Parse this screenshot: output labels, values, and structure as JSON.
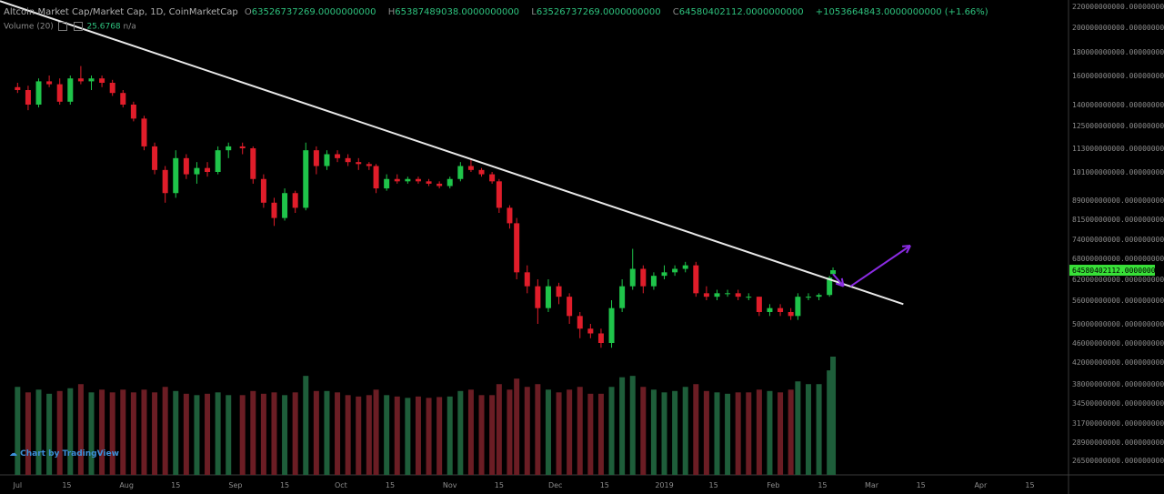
{
  "header": {
    "title": "Altcoin Market Cap/Market Cap, 1D, CoinMarketCap",
    "o_label": "O",
    "o_value": "63526737269.0000000000",
    "h_label": "H",
    "h_value": "65387489038.0000000000",
    "l_label": "L",
    "l_value": "63526737269.0000000000",
    "c_label": "C",
    "c_value": "64580402112.0000000000",
    "change": "+1053664843.0000000000 (+1.66%)"
  },
  "volume_label": "Volume (20)",
  "volume_value": "25.6768",
  "volume_na": "n/a",
  "logo": "Chart by TradingView",
  "colors": {
    "up": "#1fc44a",
    "down": "#e01d2a",
    "vol_up": "#1e5e3a",
    "vol_down": "#6b1d24",
    "trendline": "#e8e8e8",
    "arrow": "#8a2be2",
    "price_tag": "#38e038"
  },
  "chart_data": {
    "type": "candlestick",
    "title": "Altcoin Market Cap/Market Cap, 1D, CoinMarketCap",
    "price_tag": "64580402112.0000000000",
    "x_ticks": [
      "Jul",
      "15",
      "Aug",
      "15",
      "Sep",
      "15",
      "Oct",
      "15",
      "Nov",
      "15",
      "Dec",
      "15",
      "2019",
      "15",
      "Feb",
      "15",
      "Mar",
      "15",
      "Apr",
      "15"
    ],
    "y_ticks": [
      {
        "value": 220000000000,
        "label": "220000000000.0000000000"
      },
      {
        "value": 200000000000,
        "label": "200000000000.0000000000"
      },
      {
        "value": 180000000000,
        "label": "180000000000.0000000000"
      },
      {
        "value": 160000000000,
        "label": "160000000000.0000000000"
      },
      {
        "value": 140000000000,
        "label": "140000000000.0000000000"
      },
      {
        "value": 125000000000,
        "label": "125000000000.0000000000"
      },
      {
        "value": 113000000000,
        "label": "113000000000.0000000000"
      },
      {
        "value": 101000000000,
        "label": "101000000000.0000000000"
      },
      {
        "value": 89000000000,
        "label": "89000000000.0000000000"
      },
      {
        "value": 81500000000,
        "label": "81500000000.0000000000"
      },
      {
        "value": 74000000000,
        "label": "74000000000.0000000000"
      },
      {
        "value": 68000000000,
        "label": "68000000000.0000000000"
      },
      {
        "value": 62000000000,
        "label": "62000000000.0000000000"
      },
      {
        "value": 56000000000,
        "label": "56000000000.0000000000"
      },
      {
        "value": 50000000000,
        "label": "50000000000.0000000000"
      },
      {
        "value": 46000000000,
        "label": "46000000000.0000000000"
      },
      {
        "value": 42000000000,
        "label": "42000000000.0000000000"
      },
      {
        "value": 38000000000,
        "label": "38000000000.0000000000"
      },
      {
        "value": 34500000000,
        "label": "34500000000.0000000000"
      },
      {
        "value": 31700000000,
        "label": "31700000000.0000000000"
      },
      {
        "value": 28900000000,
        "label": "28900000000.0000000000"
      },
      {
        "value": 26500000000,
        "label": "26500000000.0000000000"
      }
    ],
    "candles": [
      {
        "date": "2018-07-01",
        "o": 152,
        "h": 155,
        "l": 148,
        "c": 150
      },
      {
        "date": "2018-07-04",
        "o": 150,
        "h": 153,
        "l": 136,
        "c": 140
      },
      {
        "date": "2018-07-07",
        "o": 140,
        "h": 158,
        "l": 138,
        "c": 156
      },
      {
        "date": "2018-07-10",
        "o": 156,
        "h": 160,
        "l": 152,
        "c": 154
      },
      {
        "date": "2018-07-13",
        "o": 154,
        "h": 158,
        "l": 140,
        "c": 142
      },
      {
        "date": "2018-07-16",
        "o": 142,
        "h": 160,
        "l": 140,
        "c": 158
      },
      {
        "date": "2018-07-19",
        "o": 158,
        "h": 168,
        "l": 154,
        "c": 156
      },
      {
        "date": "2018-07-22",
        "o": 156,
        "h": 160,
        "l": 150,
        "c": 158
      },
      {
        "date": "2018-07-25",
        "o": 158,
        "h": 160,
        "l": 152,
        "c": 155
      },
      {
        "date": "2018-07-28",
        "o": 155,
        "h": 157,
        "l": 146,
        "c": 148
      },
      {
        "date": "2018-07-31",
        "o": 148,
        "h": 150,
        "l": 138,
        "c": 140
      },
      {
        "date": "2018-08-03",
        "o": 140,
        "h": 142,
        "l": 128,
        "c": 130
      },
      {
        "date": "2018-08-06",
        "o": 130,
        "h": 132,
        "l": 112,
        "c": 114
      },
      {
        "date": "2018-08-09",
        "o": 114,
        "h": 116,
        "l": 100,
        "c": 102
      },
      {
        "date": "2018-08-12",
        "o": 102,
        "h": 104,
        "l": 88,
        "c": 92
      },
      {
        "date": "2018-08-15",
        "o": 92,
        "h": 112,
        "l": 90,
        "c": 108
      },
      {
        "date": "2018-08-18",
        "o": 108,
        "h": 110,
        "l": 98,
        "c": 100
      },
      {
        "date": "2018-08-21",
        "o": 100,
        "h": 106,
        "l": 96,
        "c": 103
      },
      {
        "date": "2018-08-24",
        "o": 103,
        "h": 106,
        "l": 99,
        "c": 101
      },
      {
        "date": "2018-08-27",
        "o": 101,
        "h": 114,
        "l": 100,
        "c": 112
      },
      {
        "date": "2018-08-30",
        "o": 112,
        "h": 116,
        "l": 108,
        "c": 114
      },
      {
        "date": "2018-09-03",
        "o": 114,
        "h": 116,
        "l": 110,
        "c": 113
      },
      {
        "date": "2018-09-06",
        "o": 113,
        "h": 114,
        "l": 96,
        "c": 98
      },
      {
        "date": "2018-09-09",
        "o": 98,
        "h": 100,
        "l": 86,
        "c": 88
      },
      {
        "date": "2018-09-12",
        "o": 88,
        "h": 90,
        "l": 79,
        "c": 82
      },
      {
        "date": "2018-09-15",
        "o": 82,
        "h": 94,
        "l": 81,
        "c": 92
      },
      {
        "date": "2018-09-18",
        "o": 92,
        "h": 93,
        "l": 84,
        "c": 86
      },
      {
        "date": "2018-09-21",
        "o": 86,
        "h": 116,
        "l": 85,
        "c": 112
      },
      {
        "date": "2018-09-24",
        "o": 112,
        "h": 114,
        "l": 100,
        "c": 104
      },
      {
        "date": "2018-09-27",
        "o": 104,
        "h": 112,
        "l": 102,
        "c": 110
      },
      {
        "date": "2018-09-30",
        "o": 110,
        "h": 112,
        "l": 106,
        "c": 108
      },
      {
        "date": "2018-10-03",
        "o": 108,
        "h": 110,
        "l": 104,
        "c": 106
      },
      {
        "date": "2018-10-06",
        "o": 106,
        "h": 108,
        "l": 102,
        "c": 105
      },
      {
        "date": "2018-10-09",
        "o": 105,
        "h": 106,
        "l": 102,
        "c": 104
      },
      {
        "date": "2018-10-11",
        "o": 104,
        "h": 105,
        "l": 92,
        "c": 94
      },
      {
        "date": "2018-10-14",
        "o": 94,
        "h": 100,
        "l": 93,
        "c": 98
      },
      {
        "date": "2018-10-17",
        "o": 98,
        "h": 100,
        "l": 96,
        "c": 97
      },
      {
        "date": "2018-10-20",
        "o": 97,
        "h": 99,
        "l": 96,
        "c": 98
      },
      {
        "date": "2018-10-23",
        "o": 98,
        "h": 99,
        "l": 96,
        "c": 97
      },
      {
        "date": "2018-10-26",
        "o": 97,
        "h": 98,
        "l": 95,
        "c": 96
      },
      {
        "date": "2018-10-29",
        "o": 96,
        "h": 97,
        "l": 94,
        "c": 95
      },
      {
        "date": "2018-11-01",
        "o": 95,
        "h": 99,
        "l": 94,
        "c": 98
      },
      {
        "date": "2018-11-04",
        "o": 98,
        "h": 106,
        "l": 97,
        "c": 104
      },
      {
        "date": "2018-11-07",
        "o": 104,
        "h": 108,
        "l": 101,
        "c": 102
      },
      {
        "date": "2018-11-10",
        "o": 102,
        "h": 103,
        "l": 99,
        "c": 100
      },
      {
        "date": "2018-11-13",
        "o": 100,
        "h": 101,
        "l": 96,
        "c": 97
      },
      {
        "date": "2018-11-15",
        "o": 97,
        "h": 98,
        "l": 84,
        "c": 86
      },
      {
        "date": "2018-11-18",
        "o": 86,
        "h": 87,
        "l": 78,
        "c": 80
      },
      {
        "date": "2018-11-20",
        "o": 80,
        "h": 82,
        "l": 62,
        "c": 64
      },
      {
        "date": "2018-11-23",
        "o": 64,
        "h": 66,
        "l": 58,
        "c": 60
      },
      {
        "date": "2018-11-26",
        "o": 60,
        "h": 62,
        "l": 50,
        "c": 54
      },
      {
        "date": "2018-11-29",
        "o": 54,
        "h": 62,
        "l": 53,
        "c": 60
      },
      {
        "date": "2018-12-02",
        "o": 60,
        "h": 61,
        "l": 55,
        "c": 57
      },
      {
        "date": "2018-12-05",
        "o": 57,
        "h": 58,
        "l": 50,
        "c": 52
      },
      {
        "date": "2018-12-08",
        "o": 52,
        "h": 53,
        "l": 47,
        "c": 49
      },
      {
        "date": "2018-12-11",
        "o": 49,
        "h": 50,
        "l": 47,
        "c": 48
      },
      {
        "date": "2018-12-14",
        "o": 48,
        "h": 49,
        "l": 45,
        "c": 46
      },
      {
        "date": "2018-12-17",
        "o": 46,
        "h": 56,
        "l": 45,
        "c": 54
      },
      {
        "date": "2018-12-20",
        "o": 54,
        "h": 62,
        "l": 53,
        "c": 60
      },
      {
        "date": "2018-12-23",
        "o": 60,
        "h": 71,
        "l": 59,
        "c": 65
      },
      {
        "date": "2018-12-26",
        "o": 65,
        "h": 66,
        "l": 58,
        "c": 60
      },
      {
        "date": "2018-12-29",
        "o": 60,
        "h": 64,
        "l": 59,
        "c": 63
      },
      {
        "date": "2019-01-01",
        "o": 63,
        "h": 66,
        "l": 62,
        "c": 64
      },
      {
        "date": "2019-01-04",
        "o": 64,
        "h": 66,
        "l": 63,
        "c": 65
      },
      {
        "date": "2019-01-07",
        "o": 65,
        "h": 67,
        "l": 64,
        "c": 66
      },
      {
        "date": "2019-01-10",
        "o": 66,
        "h": 67,
        "l": 57,
        "c": 58
      },
      {
        "date": "2019-01-13",
        "o": 58,
        "h": 60,
        "l": 56,
        "c": 57
      },
      {
        "date": "2019-01-16",
        "o": 57,
        "h": 59,
        "l": 56,
        "c": 58
      },
      {
        "date": "2019-01-19",
        "o": 58,
        "h": 59,
        "l": 57,
        "c": 58
      },
      {
        "date": "2019-01-22",
        "o": 58,
        "h": 59,
        "l": 56,
        "c": 57
      },
      {
        "date": "2019-01-25",
        "o": 57,
        "h": 58,
        "l": 56,
        "c": 57
      },
      {
        "date": "2019-01-28",
        "o": 57,
        "h": 57,
        "l": 52,
        "c": 53
      },
      {
        "date": "2019-01-31",
        "o": 53,
        "h": 55,
        "l": 52,
        "c": 54
      },
      {
        "date": "2019-02-03",
        "o": 54,
        "h": 55,
        "l": 52,
        "c": 53
      },
      {
        "date": "2019-02-06",
        "o": 53,
        "h": 54,
        "l": 51,
        "c": 52
      },
      {
        "date": "2019-02-08",
        "o": 52,
        "h": 58,
        "l": 51,
        "c": 57
      },
      {
        "date": "2019-02-11",
        "o": 57,
        "h": 58,
        "l": 56,
        "c": 57
      },
      {
        "date": "2019-02-14",
        "o": 57,
        "h": 58,
        "l": 56,
        "c": 57.5
      },
      {
        "date": "2019-02-17",
        "o": 57.5,
        "h": 63,
        "l": 57,
        "c": 62.5
      },
      {
        "date": "2019-02-18",
        "o": 63.5,
        "h": 65.4,
        "l": 63.5,
        "c": 64.6
      }
    ],
    "volume": [
      {
        "date": "2018-07-01",
        "v": 32,
        "up": true
      },
      {
        "date": "2018-07-04",
        "v": 30,
        "up": false
      },
      {
        "date": "2018-07-07",
        "v": 31,
        "up": true
      },
      {
        "date": "2018-07-10",
        "v": 29.5,
        "up": true
      },
      {
        "date": "2018-07-13",
        "v": 30.5,
        "up": false
      },
      {
        "date": "2018-07-16",
        "v": 31.5,
        "up": true
      },
      {
        "date": "2018-07-19",
        "v": 33,
        "up": false
      },
      {
        "date": "2018-07-22",
        "v": 30,
        "up": true
      },
      {
        "date": "2018-07-25",
        "v": 31,
        "up": false
      },
      {
        "date": "2018-07-28",
        "v": 30,
        "up": false
      },
      {
        "date": "2018-07-31",
        "v": 31,
        "up": false
      },
      {
        "date": "2018-08-03",
        "v": 30,
        "up": false
      },
      {
        "date": "2018-08-06",
        "v": 31,
        "up": false
      },
      {
        "date": "2018-08-09",
        "v": 30,
        "up": false
      },
      {
        "date": "2018-08-12",
        "v": 32,
        "up": false
      },
      {
        "date": "2018-08-15",
        "v": 30.5,
        "up": true
      },
      {
        "date": "2018-08-18",
        "v": 29.5,
        "up": false
      },
      {
        "date": "2018-08-21",
        "v": 29,
        "up": true
      },
      {
        "date": "2018-08-24",
        "v": 29.5,
        "up": false
      },
      {
        "date": "2018-08-27",
        "v": 30,
        "up": true
      },
      {
        "date": "2018-08-30",
        "v": 29,
        "up": true
      },
      {
        "date": "2018-09-03",
        "v": 29,
        "up": false
      },
      {
        "date": "2018-09-06",
        "v": 30.5,
        "up": false
      },
      {
        "date": "2018-09-09",
        "v": 29.5,
        "up": false
      },
      {
        "date": "2018-09-12",
        "v": 30,
        "up": false
      },
      {
        "date": "2018-09-15",
        "v": 29,
        "up": true
      },
      {
        "date": "2018-09-18",
        "v": 30,
        "up": false
      },
      {
        "date": "2018-09-21",
        "v": 36,
        "up": true
      },
      {
        "date": "2018-09-24",
        "v": 30.5,
        "up": false
      },
      {
        "date": "2018-09-27",
        "v": 30.5,
        "up": true
      },
      {
        "date": "2018-09-30",
        "v": 30,
        "up": false
      },
      {
        "date": "2018-10-03",
        "v": 29,
        "up": false
      },
      {
        "date": "2018-10-06",
        "v": 28.5,
        "up": false
      },
      {
        "date": "2018-10-09",
        "v": 29,
        "up": false
      },
      {
        "date": "2018-10-11",
        "v": 31,
        "up": false
      },
      {
        "date": "2018-10-14",
        "v": 29,
        "up": true
      },
      {
        "date": "2018-10-17",
        "v": 28.5,
        "up": false
      },
      {
        "date": "2018-10-20",
        "v": 28,
        "up": true
      },
      {
        "date": "2018-10-23",
        "v": 28.5,
        "up": false
      },
      {
        "date": "2018-10-26",
        "v": 28,
        "up": false
      },
      {
        "date": "2018-10-29",
        "v": 28.3,
        "up": false
      },
      {
        "date": "2018-11-01",
        "v": 28.5,
        "up": true
      },
      {
        "date": "2018-11-04",
        "v": 30.5,
        "up": true
      },
      {
        "date": "2018-11-07",
        "v": 31,
        "up": false
      },
      {
        "date": "2018-11-10",
        "v": 29,
        "up": false
      },
      {
        "date": "2018-11-13",
        "v": 29,
        "up": false
      },
      {
        "date": "2018-11-15",
        "v": 33,
        "up": false
      },
      {
        "date": "2018-11-18",
        "v": 31,
        "up": false
      },
      {
        "date": "2018-11-20",
        "v": 35,
        "up": false
      },
      {
        "date": "2018-11-23",
        "v": 32,
        "up": false
      },
      {
        "date": "2018-11-26",
        "v": 33,
        "up": false
      },
      {
        "date": "2018-11-29",
        "v": 31,
        "up": true
      },
      {
        "date": "2018-12-02",
        "v": 30,
        "up": false
      },
      {
        "date": "2018-12-05",
        "v": 31,
        "up": false
      },
      {
        "date": "2018-12-08",
        "v": 32,
        "up": false
      },
      {
        "date": "2018-12-11",
        "v": 29.5,
        "up": false
      },
      {
        "date": "2018-12-14",
        "v": 29.5,
        "up": false
      },
      {
        "date": "2018-12-17",
        "v": 32,
        "up": true
      },
      {
        "date": "2018-12-20",
        "v": 35.5,
        "up": true
      },
      {
        "date": "2018-12-23",
        "v": 36,
        "up": true
      },
      {
        "date": "2018-12-26",
        "v": 32,
        "up": false
      },
      {
        "date": "2018-12-29",
        "v": 31,
        "up": true
      },
      {
        "date": "2019-01-01",
        "v": 30,
        "up": true
      },
      {
        "date": "2019-01-04",
        "v": 30.5,
        "up": true
      },
      {
        "date": "2019-01-07",
        "v": 32,
        "up": true
      },
      {
        "date": "2019-01-10",
        "v": 33,
        "up": false
      },
      {
        "date": "2019-01-13",
        "v": 30.5,
        "up": false
      },
      {
        "date": "2019-01-16",
        "v": 30,
        "up": true
      },
      {
        "date": "2019-01-19",
        "v": 29.5,
        "up": true
      },
      {
        "date": "2019-01-22",
        "v": 30,
        "up": false
      },
      {
        "date": "2019-01-25",
        "v": 30,
        "up": false
      },
      {
        "date": "2019-01-28",
        "v": 31,
        "up": false
      },
      {
        "date": "2019-01-31",
        "v": 30.5,
        "up": true
      },
      {
        "date": "2019-02-03",
        "v": 30,
        "up": false
      },
      {
        "date": "2019-02-06",
        "v": 31,
        "up": false
      },
      {
        "date": "2019-02-08",
        "v": 34,
        "up": true
      },
      {
        "date": "2019-02-11",
        "v": 33,
        "up": true
      },
      {
        "date": "2019-02-14",
        "v": 33,
        "up": true
      },
      {
        "date": "2019-02-17",
        "v": 38,
        "up": true
      },
      {
        "date": "2019-02-18",
        "v": 43,
        "up": true
      }
    ],
    "trendline": {
      "from": {
        "date": "2018-06-26",
        "value": 225
      },
      "to": {
        "date": "2019-03-10",
        "value": 55
      }
    },
    "arrows": [
      {
        "from": {
          "date": "2019-02-18",
          "value": 63.5
        },
        "to": {
          "date": "2019-02-21",
          "value": 60
        }
      },
      {
        "from": {
          "date": "2019-02-23",
          "value": 60
        },
        "to": {
          "date": "2019-03-12",
          "value": 72
        }
      }
    ]
  }
}
